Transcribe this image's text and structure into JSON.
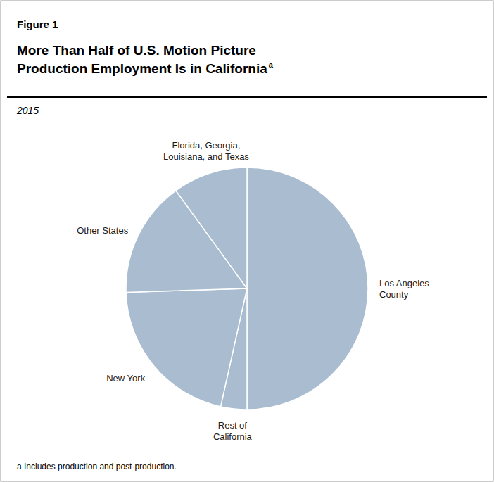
{
  "chart_data": {
    "type": "pie",
    "title": "More Than Half of U.S. Motion Picture\nProduction Employment Is in California",
    "subtitle": "2015",
    "annotations": [
      "Figure 1",
      "a",
      "a  Includes production and post-production."
    ],
    "categories": [
      "Los Angeles\nCounty",
      "Rest of\nCalifornia",
      "New York",
      "Other States",
      "Florida, Georgia,\nLouisiana, and Texas"
    ],
    "values": [
      50.0,
      3.5,
      21.0,
      15.5,
      10.0
    ],
    "color": "#a9bcd0"
  }
}
